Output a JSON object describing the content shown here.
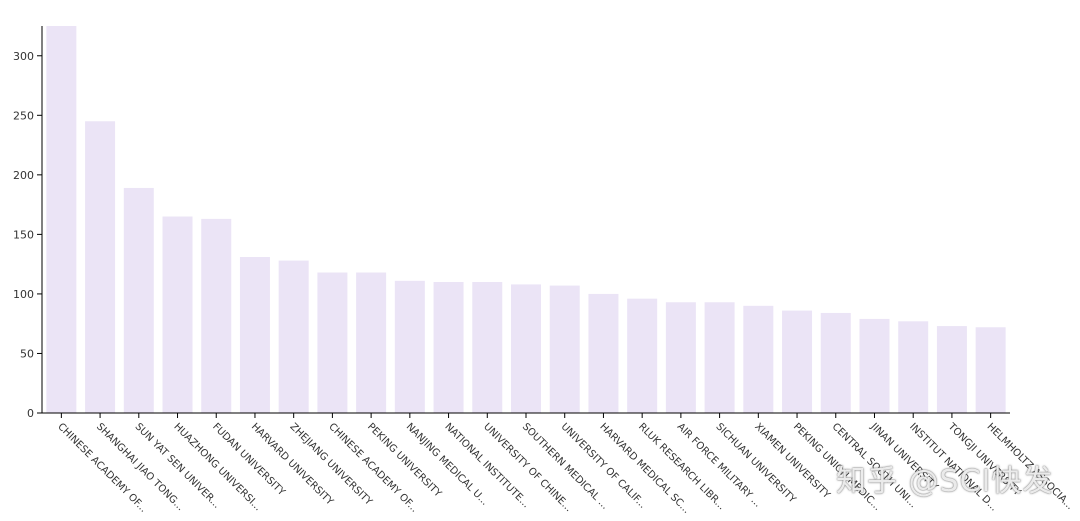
{
  "chart_data": {
    "type": "bar",
    "title": "",
    "xlabel": "",
    "ylabel": "",
    "ylim": [
      0,
      325
    ],
    "yticks": [
      0,
      50,
      100,
      150,
      200,
      250,
      300
    ],
    "bar_color": "#ebe4f6",
    "axis_color": "#000000",
    "grid": false,
    "categories": [
      "CHINESE ACADEMY OF...",
      "SHANGHAI JIAO TONG...",
      "SUN YAT SEN UNIVER...",
      "HUAZHONG UNIVERSI...",
      "FUDAN UNIVERSITY",
      "HARVARD UNIVERSITY",
      "ZHEJIANG UNIVERSITY",
      "CHINESE ACADEMY OF...",
      "PEKING UNIVERSITY",
      "NANJING MEDICAL U...",
      "NATIONAL INSTITUTE...",
      "UNIVERSITY OF CHINE...",
      "SOUTHERN MEDICAL ...",
      "UNIVERSITY OF CALIF...",
      "HARVARD MEDICAL SC...",
      "RLUK RESEARCH LIBR...",
      "AIR FORCE MILITARY ...",
      "SICHUAN UNIVERSITY",
      "XIAMEN UNIVERSITY",
      "PEKING UNION MEDIC...",
      "CENTRAL SOUTH UNI...",
      "JINAN UNIVERSITY",
      "INSTITUT NATIONAL D...",
      "TONGJI UNIVERSITY",
      "HELMHOLTZ ASSOCIA..."
    ],
    "values": [
      325,
      245,
      189,
      165,
      163,
      131,
      128,
      118,
      118,
      111,
      110,
      110,
      108,
      107,
      100,
      96,
      93,
      93,
      90,
      86,
      84,
      79,
      77,
      73,
      72
    ]
  },
  "watermark": {
    "text": "知乎 @SCI快发"
  }
}
